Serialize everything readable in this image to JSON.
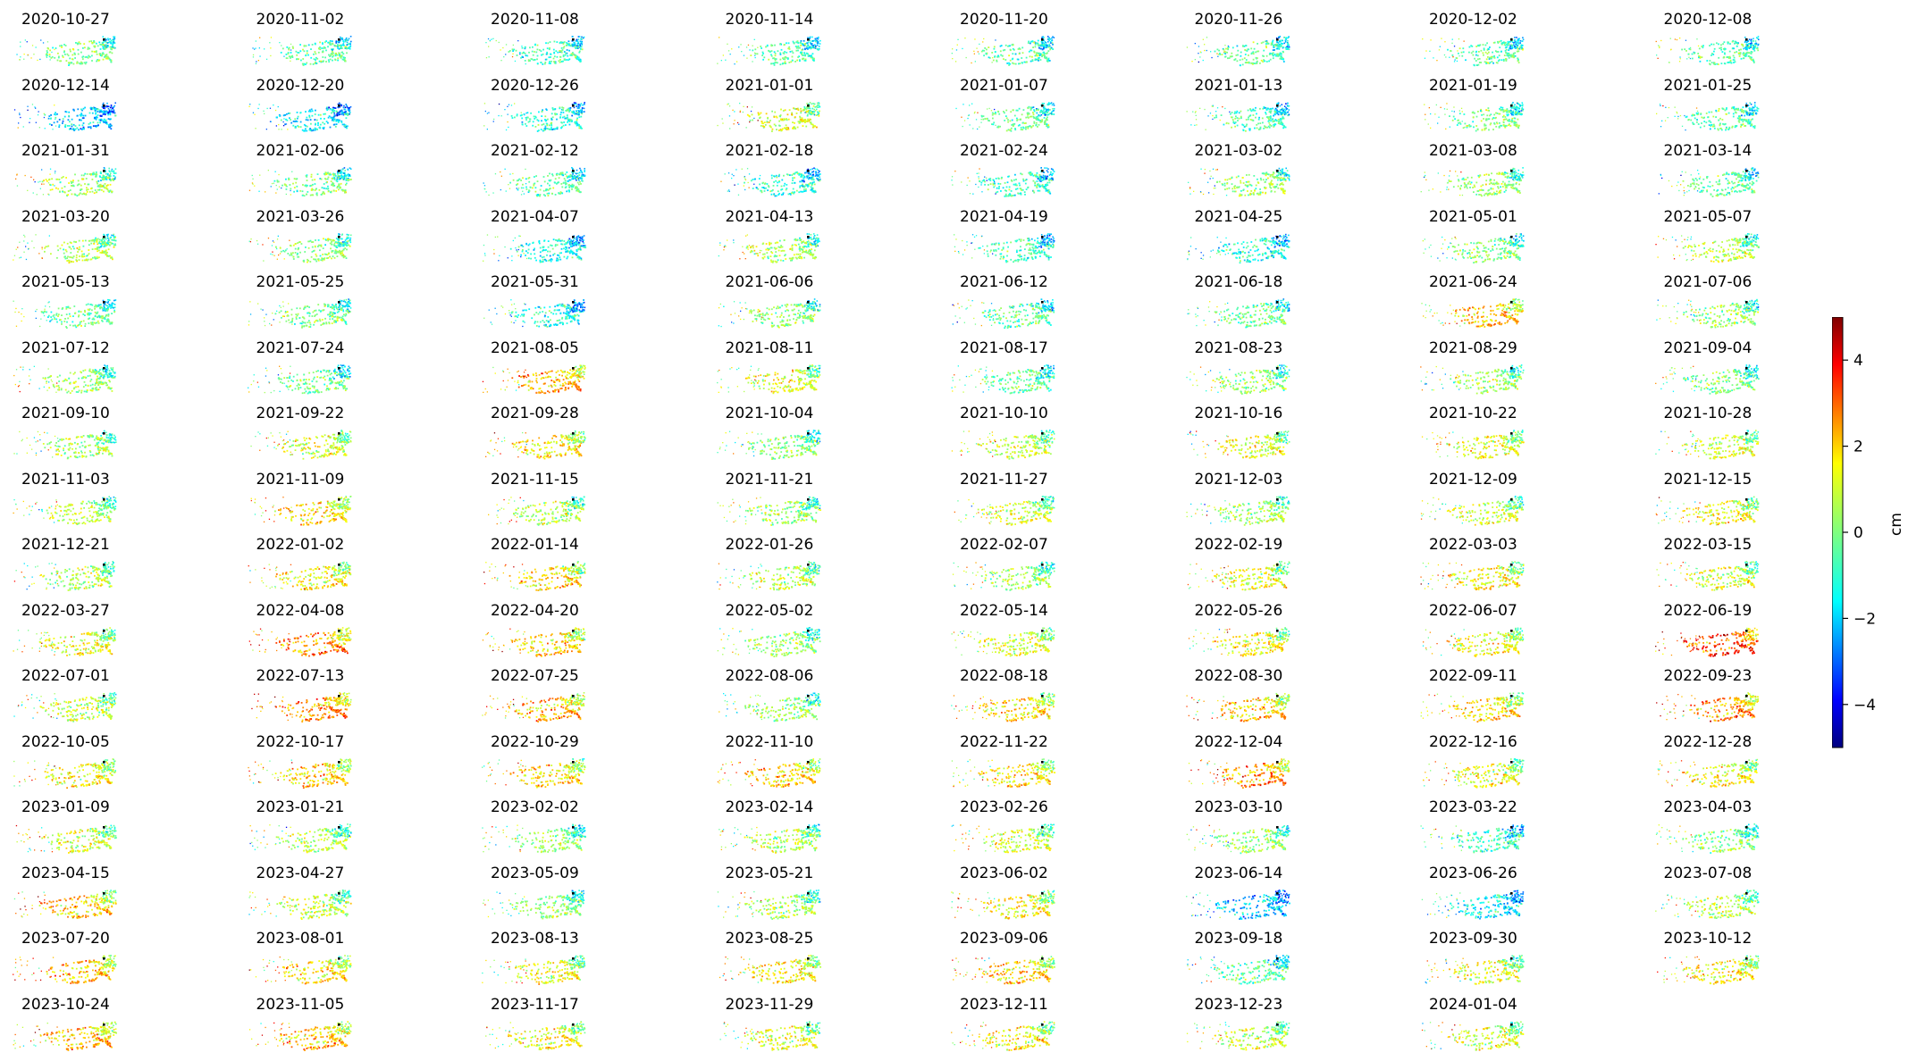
{
  "chart_data": {
    "type": "heatmap",
    "description": "",
    "colormap": "jet",
    "colorbar": {
      "label": "cm",
      "vmin": -5,
      "vmax": 5,
      "ticks": [
        4,
        2,
        0,
        -2,
        -4
      ]
    },
    "grid": {
      "rows": 16,
      "cols": 8
    },
    "panels": [
      {
        "date": "2020-10-27",
        "mean": 0.0
      },
      {
        "date": "2020-11-02",
        "mean": -0.3
      },
      {
        "date": "2020-11-08",
        "mean": -0.5
      },
      {
        "date": "2020-11-14",
        "mean": -0.4
      },
      {
        "date": "2020-11-20",
        "mean": -0.4
      },
      {
        "date": "2020-11-26",
        "mean": -0.3
      },
      {
        "date": "2020-12-02",
        "mean": -0.3
      },
      {
        "date": "2020-12-08",
        "mean": -0.3
      },
      {
        "date": "2020-12-14",
        "mean": -1.6
      },
      {
        "date": "2020-12-20",
        "mean": -1.2
      },
      {
        "date": "2020-12-26",
        "mean": -0.8
      },
      {
        "date": "2021-01-01",
        "mean": 0.9
      },
      {
        "date": "2021-01-07",
        "mean": -0.2
      },
      {
        "date": "2021-01-13",
        "mean": -0.6
      },
      {
        "date": "2021-01-19",
        "mean": 0.0
      },
      {
        "date": "2021-01-25",
        "mean": -0.3
      },
      {
        "date": "2021-01-31",
        "mean": 0.3
      },
      {
        "date": "2021-02-06",
        "mean": 0.0
      },
      {
        "date": "2021-02-12",
        "mean": -0.4
      },
      {
        "date": "2021-02-18",
        "mean": -0.7
      },
      {
        "date": "2021-02-24",
        "mean": -0.6
      },
      {
        "date": "2021-03-02",
        "mean": 0.3
      },
      {
        "date": "2021-03-08",
        "mean": 0.2
      },
      {
        "date": "2021-03-14",
        "mean": -0.2
      },
      {
        "date": "2021-03-20",
        "mean": 0.5
      },
      {
        "date": "2021-03-26",
        "mean": 0.2
      },
      {
        "date": "2021-04-07",
        "mean": -0.9
      },
      {
        "date": "2021-04-13",
        "mean": 0.4
      },
      {
        "date": "2021-04-19",
        "mean": -0.6
      },
      {
        "date": "2021-04-25",
        "mean": -0.9
      },
      {
        "date": "2021-05-01",
        "mean": 0.0
      },
      {
        "date": "2021-05-07",
        "mean": 0.6
      },
      {
        "date": "2021-05-13",
        "mean": -0.2
      },
      {
        "date": "2021-05-25",
        "mean": 0.0
      },
      {
        "date": "2021-05-31",
        "mean": -1.0
      },
      {
        "date": "2021-06-06",
        "mean": 0.2
      },
      {
        "date": "2021-06-12",
        "mean": -0.3
      },
      {
        "date": "2021-06-18",
        "mean": -0.1
      },
      {
        "date": "2021-06-24",
        "mean": 1.8
      },
      {
        "date": "2021-07-06",
        "mean": 0.3
      },
      {
        "date": "2021-07-12",
        "mean": 0.3
      },
      {
        "date": "2021-07-24",
        "mean": 0.0
      },
      {
        "date": "2021-08-05",
        "mean": 2.0
      },
      {
        "date": "2021-08-11",
        "mean": 0.9
      },
      {
        "date": "2021-08-17",
        "mean": -0.3
      },
      {
        "date": "2021-08-23",
        "mean": 0.2
      },
      {
        "date": "2021-08-29",
        "mean": 0.4
      },
      {
        "date": "2021-09-04",
        "mean": 0.0
      },
      {
        "date": "2021-09-10",
        "mean": 0.4
      },
      {
        "date": "2021-09-22",
        "mean": 0.9
      },
      {
        "date": "2021-09-28",
        "mean": 1.4
      },
      {
        "date": "2021-10-04",
        "mean": 0.1
      },
      {
        "date": "2021-10-10",
        "mean": 0.7
      },
      {
        "date": "2021-10-16",
        "mean": 0.9
      },
      {
        "date": "2021-10-22",
        "mean": 1.0
      },
      {
        "date": "2021-10-28",
        "mean": 0.9
      },
      {
        "date": "2021-11-03",
        "mean": 0.6
      },
      {
        "date": "2021-11-09",
        "mean": 1.4
      },
      {
        "date": "2021-11-15",
        "mean": 0.5
      },
      {
        "date": "2021-11-21",
        "mean": 0.3
      },
      {
        "date": "2021-11-27",
        "mean": 0.8
      },
      {
        "date": "2021-12-03",
        "mean": 0.4
      },
      {
        "date": "2021-12-09",
        "mean": 0.7
      },
      {
        "date": "2021-12-15",
        "mean": 1.1
      },
      {
        "date": "2021-12-21",
        "mean": 0.5
      },
      {
        "date": "2022-01-02",
        "mean": 1.3
      },
      {
        "date": "2022-01-14",
        "mean": 1.5
      },
      {
        "date": "2022-01-26",
        "mean": 0.6
      },
      {
        "date": "2022-02-07",
        "mean": 0.3
      },
      {
        "date": "2022-02-19",
        "mean": 1.0
      },
      {
        "date": "2022-03-03",
        "mean": 1.2
      },
      {
        "date": "2022-03-15",
        "mean": 0.8
      },
      {
        "date": "2022-03-27",
        "mean": 1.0
      },
      {
        "date": "2022-04-08",
        "mean": 2.2
      },
      {
        "date": "2022-04-20",
        "mean": 1.6
      },
      {
        "date": "2022-05-02",
        "mean": 0.2
      },
      {
        "date": "2022-05-14",
        "mean": 0.9
      },
      {
        "date": "2022-05-26",
        "mean": 1.3
      },
      {
        "date": "2022-06-07",
        "mean": 1.2
      },
      {
        "date": "2022-06-19",
        "mean": 3.0
      },
      {
        "date": "2022-07-01",
        "mean": 0.8
      },
      {
        "date": "2022-07-13",
        "mean": 2.2
      },
      {
        "date": "2022-07-25",
        "mean": 1.9
      },
      {
        "date": "2022-08-06",
        "mean": 0.3
      },
      {
        "date": "2022-08-18",
        "mean": 1.5
      },
      {
        "date": "2022-08-30",
        "mean": 1.7
      },
      {
        "date": "2022-09-11",
        "mean": 1.5
      },
      {
        "date": "2022-09-23",
        "mean": 2.3
      },
      {
        "date": "2022-10-05",
        "mean": 1.2
      },
      {
        "date": "2022-10-17",
        "mean": 1.6
      },
      {
        "date": "2022-10-29",
        "mean": 1.5
      },
      {
        "date": "2022-11-10",
        "mean": 1.5
      },
      {
        "date": "2022-11-22",
        "mean": 1.4
      },
      {
        "date": "2022-12-04",
        "mean": 2.2
      },
      {
        "date": "2022-12-16",
        "mean": 1.0
      },
      {
        "date": "2022-12-28",
        "mean": 1.2
      },
      {
        "date": "2023-01-09",
        "mean": 0.9
      },
      {
        "date": "2023-01-21",
        "mean": 0.5
      },
      {
        "date": "2023-02-02",
        "mean": 0.2
      },
      {
        "date": "2023-02-14",
        "mean": 0.5
      },
      {
        "date": "2023-02-26",
        "mean": 0.8
      },
      {
        "date": "2023-03-10",
        "mean": 0.2
      },
      {
        "date": "2023-03-22",
        "mean": -0.6
      },
      {
        "date": "2023-04-03",
        "mean": 0.1
      },
      {
        "date": "2023-04-15",
        "mean": 1.6
      },
      {
        "date": "2023-04-27",
        "mean": 0.6
      },
      {
        "date": "2023-05-09",
        "mean": 0.2
      },
      {
        "date": "2023-05-21",
        "mean": 0.4
      },
      {
        "date": "2023-06-02",
        "mean": 1.2
      },
      {
        "date": "2023-06-14",
        "mean": -1.7
      },
      {
        "date": "2023-06-26",
        "mean": -1.2
      },
      {
        "date": "2023-07-08",
        "mean": 0.6
      },
      {
        "date": "2023-07-20",
        "mean": 1.8
      },
      {
        "date": "2023-08-01",
        "mean": 1.4
      },
      {
        "date": "2023-08-13",
        "mean": 1.0
      },
      {
        "date": "2023-08-25",
        "mean": 1.3
      },
      {
        "date": "2023-09-06",
        "mean": 1.6
      },
      {
        "date": "2023-09-18",
        "mean": -0.3
      },
      {
        "date": "2023-09-30",
        "mean": 0.9
      },
      {
        "date": "2023-10-12",
        "mean": 1.3
      },
      {
        "date": "2023-10-24",
        "mean": 1.8
      },
      {
        "date": "2023-11-05",
        "mean": 1.8
      },
      {
        "date": "2023-11-17",
        "mean": 1.1
      },
      {
        "date": "2023-11-29",
        "mean": 1.0
      },
      {
        "date": "2023-12-11",
        "mean": 1.2
      },
      {
        "date": "2023-12-23",
        "mean": 0.7
      },
      {
        "date": "2024-01-04",
        "mean": 0.9
      }
    ]
  }
}
